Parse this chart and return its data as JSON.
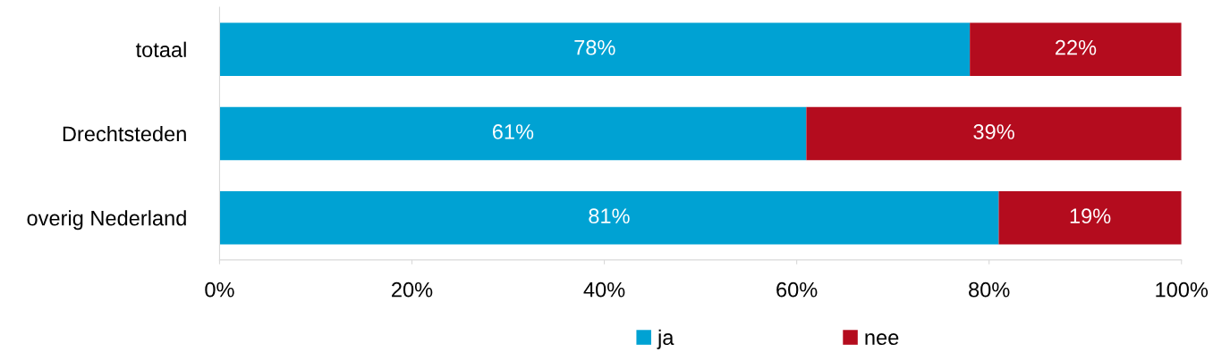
{
  "chart_data": {
    "type": "bar",
    "orientation": "horizontal",
    "stacked": true,
    "categories": [
      "totaal",
      "Drechtsteden",
      "overig Nederland"
    ],
    "series": [
      {
        "name": "ja",
        "color": "#00a2d3",
        "values": [
          78,
          61,
          81
        ],
        "value_labels": [
          "78%",
          "61%",
          "81%"
        ]
      },
      {
        "name": "nee",
        "color": "#b40c1e",
        "values": [
          22,
          39,
          19
        ],
        "value_labels": [
          "22%",
          "39%",
          "19%"
        ]
      }
    ],
    "xlim": [
      0,
      100
    ],
    "xticks": [
      {
        "value": 0,
        "label": "0%"
      },
      {
        "value": 20,
        "label": "20%"
      },
      {
        "value": 40,
        "label": "40%"
      },
      {
        "value": 60,
        "label": "60%"
      },
      {
        "value": 80,
        "label": "80%"
      },
      {
        "value": 100,
        "label": "100%"
      }
    ],
    "grid": false,
    "legend": "bottom"
  }
}
